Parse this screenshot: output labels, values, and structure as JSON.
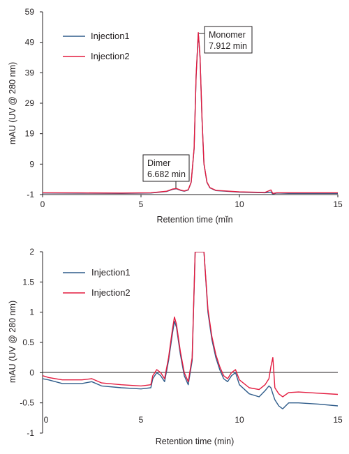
{
  "chart_data": [
    {
      "type": "line",
      "xlabel": "Retention time (mĭn",
      "ylabel": "mAU (UV @ 280 nm)",
      "xlim": [
        0,
        15
      ],
      "ylim": [
        -1,
        59
      ],
      "x_ticks": [
        "0",
        "5",
        "10",
        "15"
      ],
      "y_ticks": [
        "59",
        "49",
        "39",
        "29",
        "19",
        "9",
        "-1"
      ],
      "legend_position": "top-left",
      "annotations": [
        {
          "line1": "Monomer",
          "line2": "7.912 min",
          "x": 7.912,
          "y": 52
        },
        {
          "line1": "Dimer",
          "line2": "6.682 min",
          "x": 6.682,
          "y": 2.0
        }
      ],
      "series": [
        {
          "name": "Injection1",
          "color": "#2f5c8a",
          "x": [
            0,
            2,
            4,
            5.5,
            6.3,
            6.6,
            6.8,
            7.0,
            7.2,
            7.4,
            7.55,
            7.7,
            7.8,
            7.912,
            8.0,
            8.1,
            8.2,
            8.35,
            8.5,
            8.8,
            9.5,
            10,
            11.3,
            11.6,
            11.7,
            11.9,
            12.5,
            15
          ],
          "y": [
            -0.5,
            -0.55,
            -0.6,
            -0.5,
            0.0,
            0.7,
            0.9,
            0.4,
            0.1,
            0.5,
            3.0,
            14,
            38,
            52,
            44,
            24,
            9,
            3,
            1.2,
            0.3,
            0.0,
            -0.2,
            -0.4,
            -0.2,
            -0.8,
            -0.5,
            -0.6,
            -0.6
          ]
        },
        {
          "name": "Injection2",
          "color": "#e31b3f",
          "x": [
            0,
            2,
            4,
            5.5,
            6.3,
            6.6,
            6.8,
            7.0,
            7.2,
            7.4,
            7.55,
            7.7,
            7.8,
            7.912,
            8.0,
            8.1,
            8.2,
            8.35,
            8.5,
            8.8,
            9.5,
            10,
            11.3,
            11.6,
            11.7,
            11.9,
            12.5,
            15
          ],
          "y": [
            -0.4,
            -0.45,
            -0.5,
            -0.4,
            0.1,
            0.8,
            1.0,
            0.5,
            0.2,
            0.6,
            3.1,
            14.2,
            38.2,
            52.2,
            44.2,
            24.2,
            9.2,
            3.1,
            1.3,
            0.4,
            0.1,
            -0.1,
            -0.3,
            0.5,
            -0.6,
            -0.4,
            -0.4,
            -0.4
          ]
        }
      ]
    },
    {
      "type": "line",
      "xlabel": "Retention time (min)",
      "ylabel": "mAU (UV @ 280 nm)",
      "xlim": [
        0,
        15
      ],
      "ylim": [
        -1,
        2
      ],
      "x_ticks": [
        "0",
        "5",
        "10",
        "15"
      ],
      "y_ticks": [
        "2",
        "1.5",
        "1",
        "0.5",
        "0",
        "-0.5",
        "-1"
      ],
      "legend_position": "top-left",
      "series": [
        {
          "name": "Injection1",
          "color": "#2f5c8a",
          "x": [
            0,
            0.3,
            1,
            2,
            2.5,
            3,
            4,
            5,
            5.5,
            5.6,
            5.8,
            6.0,
            6.2,
            6.4,
            6.6,
            6.7,
            6.8,
            7.0,
            7.2,
            7.4,
            7.6,
            7.75,
            8.2,
            8.4,
            8.6,
            8.8,
            9.0,
            9.2,
            9.4,
            9.6,
            9.8,
            10.0,
            10.5,
            11.0,
            11.3,
            11.5,
            11.6,
            11.7,
            11.8,
            12.0,
            12.2,
            12.5,
            13,
            14,
            15
          ],
          "y": [
            -0.1,
            -0.12,
            -0.18,
            -0.18,
            -0.15,
            -0.22,
            -0.25,
            -0.27,
            -0.25,
            -0.1,
            0.0,
            -0.05,
            -0.15,
            0.2,
            0.65,
            0.85,
            0.75,
            0.3,
            -0.05,
            -0.2,
            0.2,
            2.0,
            2.0,
            1.0,
            0.55,
            0.25,
            0.05,
            -0.1,
            -0.15,
            -0.05,
            0.0,
            -0.2,
            -0.35,
            -0.4,
            -0.3,
            -0.22,
            -0.25,
            -0.35,
            -0.45,
            -0.55,
            -0.6,
            -0.5,
            -0.5,
            -0.52,
            -0.55
          ]
        },
        {
          "name": "Injection2",
          "color": "#e31b3f",
          "x": [
            0,
            0.3,
            1,
            2,
            2.5,
            3,
            4,
            5,
            5.5,
            5.6,
            5.8,
            6.0,
            6.2,
            6.4,
            6.6,
            6.7,
            6.8,
            7.0,
            7.2,
            7.4,
            7.6,
            7.75,
            8.2,
            8.4,
            8.6,
            8.8,
            9.0,
            9.2,
            9.4,
            9.6,
            9.8,
            10.0,
            10.5,
            11.0,
            11.3,
            11.5,
            11.6,
            11.7,
            11.8,
            12.0,
            12.2,
            12.5,
            13,
            14,
            15
          ],
          "y": [
            -0.05,
            -0.08,
            -0.12,
            -0.12,
            -0.1,
            -0.17,
            -0.2,
            -0.22,
            -0.2,
            -0.05,
            0.05,
            0.0,
            -0.1,
            0.25,
            0.72,
            0.92,
            0.8,
            0.35,
            0.0,
            -0.15,
            0.25,
            2.0,
            2.0,
            1.05,
            0.6,
            0.3,
            0.1,
            -0.05,
            -0.1,
            0.0,
            0.05,
            -0.12,
            -0.25,
            -0.28,
            -0.2,
            -0.1,
            0.1,
            0.25,
            -0.25,
            -0.35,
            -0.4,
            -0.33,
            -0.32,
            -0.34,
            -0.36
          ]
        }
      ]
    }
  ]
}
